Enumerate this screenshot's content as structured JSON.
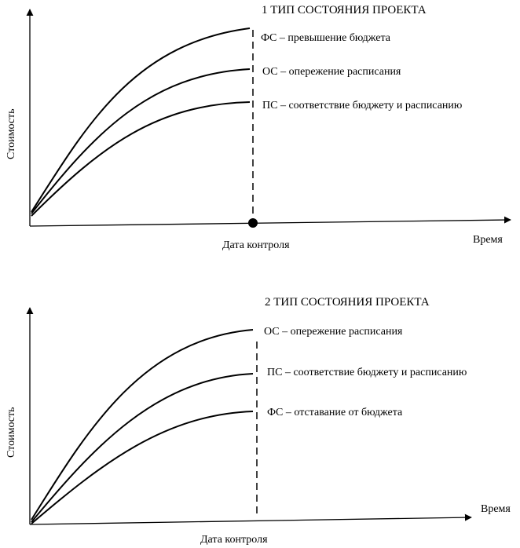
{
  "diagram1": {
    "title": "1 ТИП СОСТОЯНИЯ ПРОЕКТА",
    "y_axis_label": "Стоимость",
    "x_axis_label": "Время",
    "control_label": "Дата контроля",
    "curves": [
      {
        "label": "ФС – превышение бюджета"
      },
      {
        "label": "ОС – опережение расписания"
      },
      {
        "label": "ПС – соответствие бюджету и расписанию"
      }
    ]
  },
  "diagram2": {
    "title": "2 ТИП СОСТОЯНИЯ ПРОЕКТА",
    "y_axis_label": "Стоимость",
    "x_axis_label": "Время",
    "control_label": "Дата контроля",
    "curves": [
      {
        "label": "ОС – опережение расписания"
      },
      {
        "label": "ПС – соответствие бюджету и расписанию"
      },
      {
        "label": "ФС – отставание от бюджета"
      }
    ]
  }
}
